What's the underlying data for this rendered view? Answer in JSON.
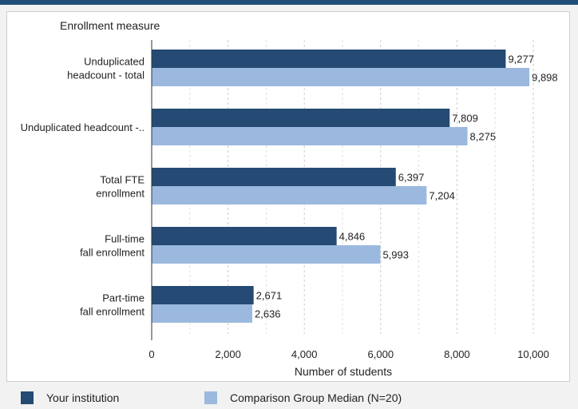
{
  "chart_data": {
    "type": "bar",
    "orientation": "horizontal",
    "category_axis_title": "Enrollment measure",
    "xlabel": "Number of students",
    "xlim": [
      0,
      10000
    ],
    "x_ticks": [
      0,
      2000,
      4000,
      6000,
      8000,
      10000
    ],
    "x_tick_labels": [
      "0",
      "2,000",
      "4,000",
      "6,000",
      "8,000",
      "10,000"
    ],
    "grid": "vertical dashed",
    "categories": [
      [
        "Unduplicated",
        "headcount - total"
      ],
      [
        "Unduplicated headcount -.."
      ],
      [
        "Total FTE",
        "enrollment"
      ],
      [
        "Full-time",
        "fall enrollment"
      ],
      [
        "Part-time",
        "fall enrollment"
      ]
    ],
    "series": [
      {
        "name": "Your institution",
        "color": "#254a74",
        "values": [
          9277,
          7809,
          6397,
          4846,
          2671
        ],
        "labels": [
          "9,277",
          "7,809",
          "6,397",
          "4,846",
          "2,671"
        ]
      },
      {
        "name": "Comparison Group Median (N=20)",
        "color": "#9bb9de",
        "values": [
          9898,
          8275,
          7204,
          5993,
          2636
        ],
        "labels": [
          "9,898",
          "8,275",
          "7,204",
          "5,993",
          "2,636"
        ]
      }
    ],
    "legend_position": "bottom"
  }
}
